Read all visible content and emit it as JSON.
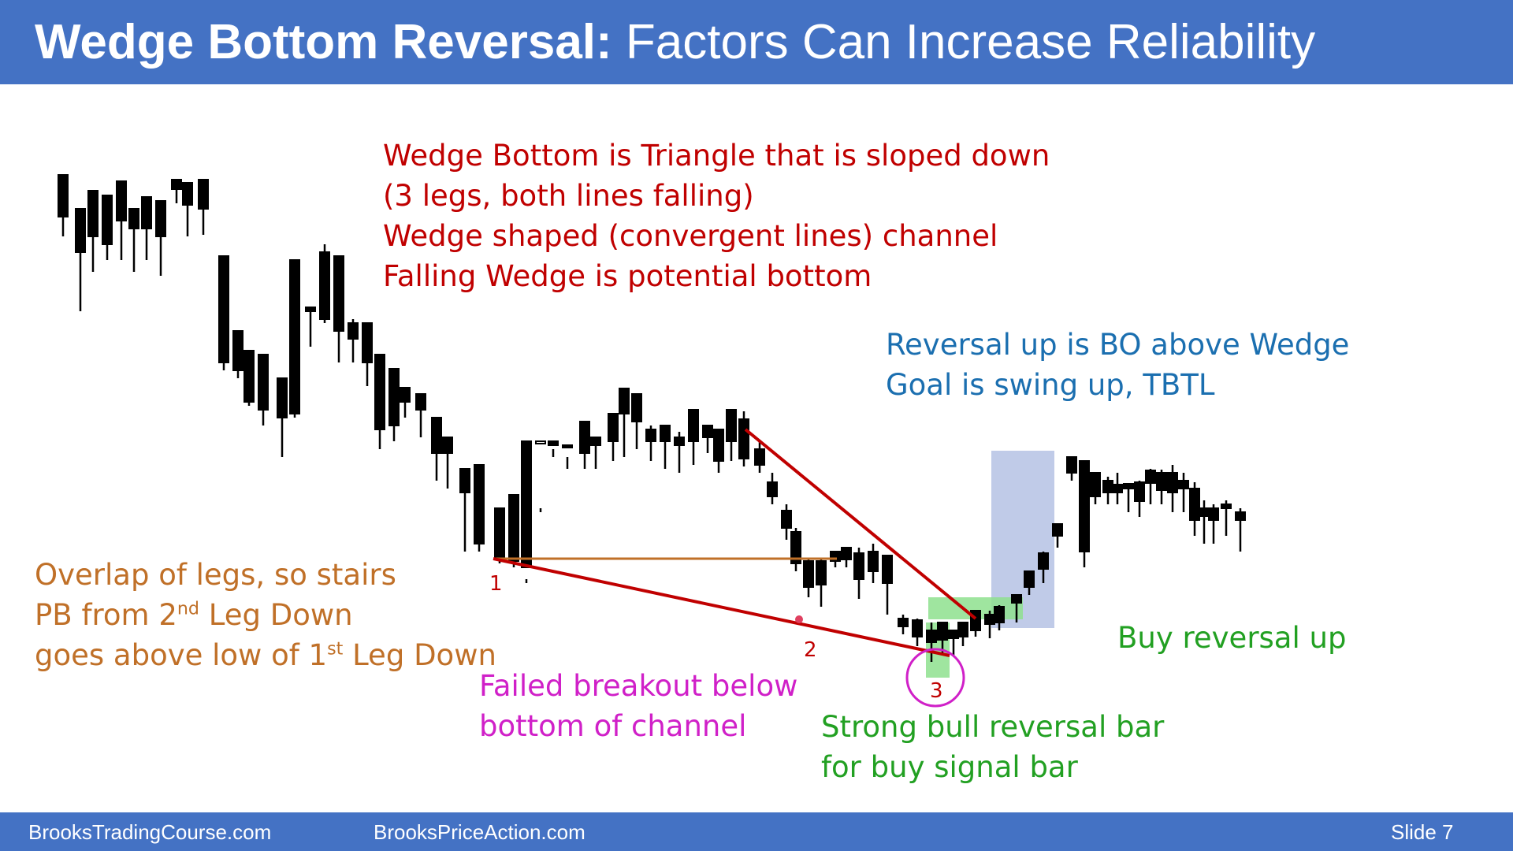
{
  "slide": {
    "title_bold": "Wedge Bottom Reversal:",
    "title_rest": " Factors Can Increase Reliability",
    "footer_left": "BrooksTradingCourse.com",
    "footer_mid": "BrooksPriceAction.com",
    "footer_right": "Slide  7"
  },
  "annotations": {
    "definition": [
      "Wedge Bottom is Triangle that is sloped down",
      "(3 legs, both lines falling)",
      "Wedge shaped (convergent lines) channel",
      "Falling Wedge is potential bottom"
    ],
    "reversal": [
      "Reversal up is BO above Wedge",
      "Goal is swing up, TBTL"
    ],
    "overlap_1": "Overlap of legs, so stairs",
    "overlap_2a": "PB from 2",
    "overlap_2sup": "nd",
    "overlap_2b": " Leg Down",
    "overlap_3a": "goes above low of 1",
    "overlap_3sup": "st",
    "overlap_3b": " Leg Down",
    "failed": [
      "Failed breakout below",
      "bottom of channel"
    ],
    "strong": [
      "Strong bull reversal bar",
      "for buy signal bar"
    ],
    "buy": "Buy reversal up",
    "leg1": "1",
    "leg2": "2",
    "leg3": "3"
  },
  "chart_data": {
    "type": "candlestick",
    "colors": {
      "bull_body": "#ffffff",
      "bear_body": "#000000",
      "wedge_lines": "#c00000",
      "stairs_line": "#c07028",
      "breakout_box": "#b4c1e4",
      "signal_highlight": "#7fe07f",
      "circle": "#d020c8"
    },
    "candles": [
      [
        80,
        230,
        222,
        275,
        300
      ],
      [
        102,
        300,
        265,
        320,
        395
      ],
      [
        118,
        255,
        242,
        300,
        345
      ],
      [
        136,
        262,
        248,
        310,
        330
      ],
      [
        154,
        258,
        230,
        280,
        330
      ],
      [
        170,
        275,
        265,
        290,
        345
      ],
      [
        186,
        262,
        250,
        290,
        330
      ],
      [
        204,
        290,
        255,
        300,
        350
      ],
      [
        224,
        232,
        228,
        240,
        258
      ],
      [
        238,
        240,
        232,
        260,
        300
      ],
      [
        258,
        238,
        228,
        265,
        298
      ],
      [
        284,
        365,
        325,
        460,
        470
      ],
      [
        302,
        420,
        420,
        470,
        480
      ],
      [
        316,
        450,
        445,
        510,
        515
      ],
      [
        334,
        460,
        450,
        520,
        540
      ],
      [
        358,
        515,
        480,
        530,
        580
      ],
      [
        374,
        365,
        330,
        525,
        530
      ],
      [
        394,
        395,
        390,
        395,
        440
      ],
      [
        412,
        310,
        320,
        405,
        410
      ],
      [
        430,
        410,
        325,
        420,
        460
      ],
      [
        448,
        405,
        410,
        430,
        460
      ],
      [
        466,
        420,
        410,
        460,
        490
      ],
      [
        482,
        480,
        450,
        545,
        570
      ],
      [
        500,
        470,
        468,
        540,
        560
      ],
      [
        514,
        495,
        492,
        510,
        530
      ],
      [
        534,
        510,
        500,
        520,
        555
      ],
      [
        554,
        540,
        530,
        575,
        610
      ],
      [
        568,
        565,
        555,
        575,
        620
      ],
      [
        590,
        605,
        595,
        625,
        700
      ],
      [
        608,
        602,
        590,
        690,
        700
      ],
      [
        634,
        700,
        645,
        710,
        715
      ],
      [
        652,
        712,
        628,
        712,
        720
      ],
      [
        668,
        735,
        560,
        720,
        740
      ],
      [
        686,
        645,
        562,
        560,
        650
      ],
      [
        702,
        570,
        560,
        565,
        580
      ],
      [
        720,
        580,
        565,
        565,
        595
      ],
      [
        742,
        555,
        535,
        575,
        595
      ],
      [
        756,
        560,
        555,
        565,
        595
      ],
      [
        778,
        530,
        525,
        560,
        585
      ],
      [
        792,
        525,
        493,
        525,
        580
      ],
      [
        808,
        500,
        500,
        535,
        570
      ],
      [
        826,
        540,
        545,
        560,
        585
      ],
      [
        844,
        555,
        540,
        560,
        595
      ],
      [
        862,
        548,
        555,
        565,
        600
      ],
      [
        880,
        520,
        520,
        560,
        590
      ],
      [
        898,
        540,
        540,
        555,
        575
      ],
      [
        912,
        560,
        545,
        585,
        600
      ],
      [
        928,
        525,
        520,
        560,
        585
      ],
      [
        944,
        522,
        532,
        582,
        592
      ],
      [
        964,
        560,
        570,
        590,
        600
      ],
      [
        980,
        600,
        612,
        630,
        640
      ],
      [
        998,
        640,
        648,
        670,
        685
      ],
      [
        1010,
        670,
        675,
        715,
        725
      ],
      [
        1026,
        710,
        712,
        745,
        758
      ],
      [
        1042,
        710,
        712,
        742,
        770
      ],
      [
        1060,
        700,
        700,
        712,
        720
      ],
      [
        1074,
        695,
        695,
        710,
        720
      ],
      [
        1090,
        695,
        702,
        735,
        760
      ],
      [
        1108,
        690,
        700,
        725,
        740
      ],
      [
        1126,
        710,
        705,
        740,
        780
      ],
      [
        1146,
        780,
        785,
        795,
        805
      ],
      [
        1164,
        785,
        787,
        808,
        820
      ],
      [
        1182,
        790,
        800,
        815,
        840
      ],
      [
        1196,
        790,
        790,
        812,
        830
      ],
      [
        1210,
        800,
        800,
        810,
        832
      ],
      [
        1222,
        790,
        790,
        808,
        820
      ],
      [
        1238,
        775,
        775,
        800,
        808
      ],
      [
        1256,
        775,
        780,
        792,
        810
      ],
      [
        1268,
        768,
        770,
        790,
        800
      ],
      [
        1290,
        755,
        755,
        765,
        790
      ],
      [
        1306,
        725,
        725,
        745,
        755
      ],
      [
        1324,
        700,
        702,
        722,
        740
      ],
      [
        1342,
        665,
        665,
        680,
        695
      ],
      [
        1360,
        580,
        580,
        600,
        610
      ],
      [
        1376,
        585,
        585,
        700,
        720
      ],
      [
        1390,
        600,
        600,
        630,
        640
      ],
      [
        1406,
        605,
        610,
        625,
        640
      ],
      [
        1418,
        600,
        615,
        625,
        640
      ],
      [
        1432,
        615,
        614,
        620,
        650
      ],
      [
        1446,
        610,
        612,
        636,
        656
      ],
      [
        1460,
        595,
        597,
        613,
        640
      ],
      [
        1474,
        596,
        600,
        622,
        640
      ],
      [
        1488,
        590,
        600,
        625,
        650
      ],
      [
        1502,
        600,
        610,
        620,
        650
      ],
      [
        1516,
        612,
        620,
        660,
        680
      ],
      [
        1528,
        635,
        645,
        655,
        690
      ],
      [
        1540,
        640,
        645,
        660,
        690
      ],
      [
        1556,
        635,
        640,
        645,
        680
      ],
      [
        1574,
        645,
        650,
        660,
        700
      ]
    ]
  }
}
